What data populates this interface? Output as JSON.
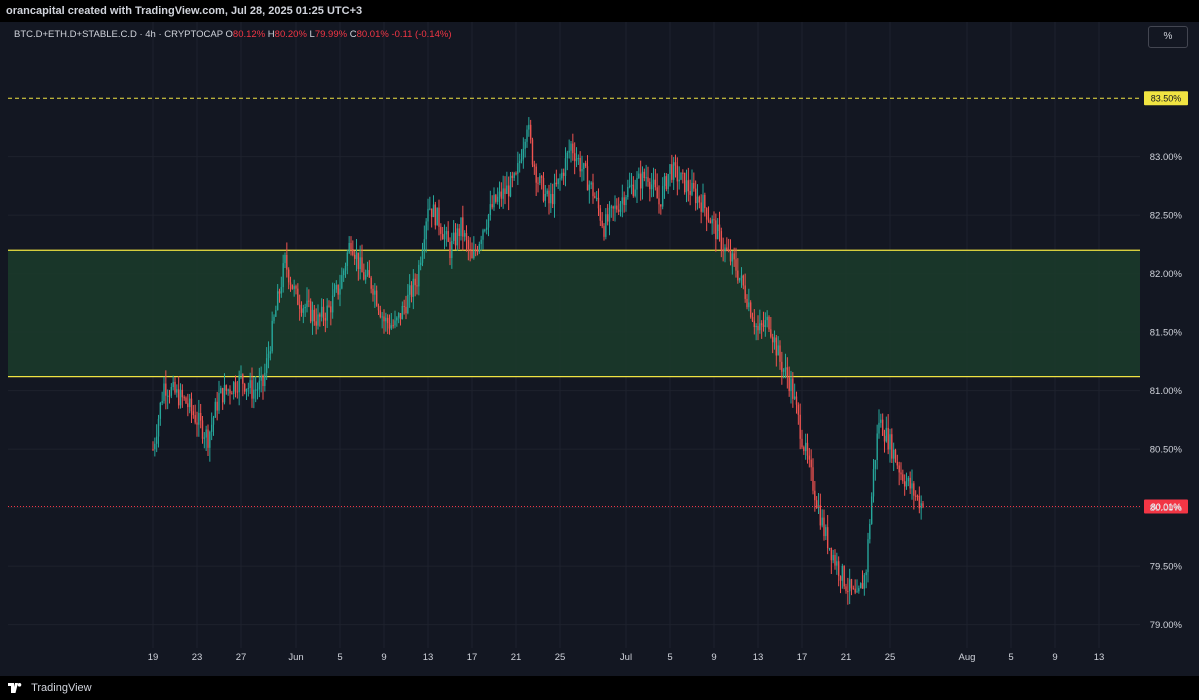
{
  "header": {
    "attribution": "orancapital created with TradingView.com, Jul 28, 2025 01:25 UTC+3"
  },
  "legend": {
    "symbol": "BTC.D+ETH.D+STABLE.C.D · 4h · CRYPTOCAP",
    "open_label": "O",
    "open": "80.12%",
    "high_label": "H",
    "high": "80.20%",
    "low_label": "L",
    "low": "79.99%",
    "close_label": "C",
    "close": "80.01%",
    "change": "-0.11 (-0.14%)"
  },
  "scale_button": "%",
  "footer": {
    "brand": "TradingView"
  },
  "colors": {
    "background": "#131722",
    "up": "#26a69a",
    "down": "#ef5350",
    "zone_fill": "#1b3a2a",
    "zone_border": "#f0e442",
    "resistance_line": "#f0e442",
    "price_line": "#f23645",
    "axis_text": "#d1d4dc"
  },
  "chart_data": {
    "type": "candlestick",
    "timeframe": "4h",
    "ylim": [
      78.8,
      84.1
    ],
    "yticks": [
      "79.00%",
      "79.50%",
      "80.00%",
      "80.50%",
      "81.00%",
      "81.50%",
      "82.00%",
      "82.50%",
      "83.00%"
    ],
    "yticks_values": [
      79.0,
      79.5,
      80.0,
      80.5,
      81.0,
      81.5,
      82.0,
      82.5,
      83.0
    ],
    "xticks": [
      "19",
      "23",
      "27",
      "Jun",
      "5",
      "9",
      "13",
      "17",
      "21",
      "25",
      "Jul",
      "5",
      "9",
      "13",
      "17",
      "21",
      "25",
      "Aug",
      "5",
      "9",
      "13"
    ],
    "xticks_days": [
      0,
      4,
      8,
      13,
      17,
      21,
      25,
      29,
      33,
      37,
      43,
      47,
      51,
      55,
      59,
      63,
      67,
      74,
      78,
      82,
      86
    ],
    "x_start": "2025-05-19",
    "price_path_days": [
      0,
      1,
      3,
      5,
      6,
      8,
      9,
      10,
      11,
      12,
      13,
      15,
      16,
      17,
      18,
      19,
      20,
      21,
      22,
      24,
      25,
      26,
      27,
      28,
      29,
      30,
      31,
      33,
      34,
      34.5,
      35,
      36,
      37,
      38,
      40,
      41,
      43,
      45,
      46,
      47,
      48,
      50,
      51,
      52,
      53,
      54,
      55,
      56,
      57,
      58,
      59,
      60,
      61,
      62,
      63,
      64,
      64.8,
      65.5,
      66,
      67,
      68,
      69,
      70
    ],
    "price_path_values": [
      80.5,
      81.05,
      80.9,
      80.6,
      80.95,
      81.1,
      81.0,
      81.05,
      81.6,
      82.1,
      81.8,
      81.6,
      81.7,
      81.9,
      82.3,
      82.0,
      81.9,
      81.6,
      81.55,
      81.95,
      82.6,
      82.45,
      82.2,
      82.4,
      82.1,
      82.4,
      82.6,
      82.8,
      83.3,
      83.0,
      82.8,
      82.6,
      82.8,
      83.1,
      82.7,
      82.4,
      82.7,
      82.85,
      82.6,
      82.9,
      82.8,
      82.6,
      82.4,
      82.2,
      82.05,
      81.8,
      81.5,
      81.6,
      81.25,
      81.05,
      80.6,
      80.2,
      79.8,
      79.55,
      79.35,
      79.2,
      79.45,
      80.3,
      80.75,
      80.55,
      80.3,
      80.15,
      80.01
    ],
    "horizontal_lines": [
      {
        "value": 83.5,
        "label": "83.50%",
        "style": "dashed",
        "color": "#f0e442"
      },
      {
        "value": 80.01,
        "label": "80.01%",
        "style": "dotted",
        "color": "#f23645"
      }
    ],
    "zones": [
      {
        "from": 81.12,
        "to": 82.2,
        "color": "#1b3a2a",
        "border": "#f0e442"
      }
    ],
    "last_close": 80.01,
    "grid": true,
    "legend": "top-left"
  }
}
